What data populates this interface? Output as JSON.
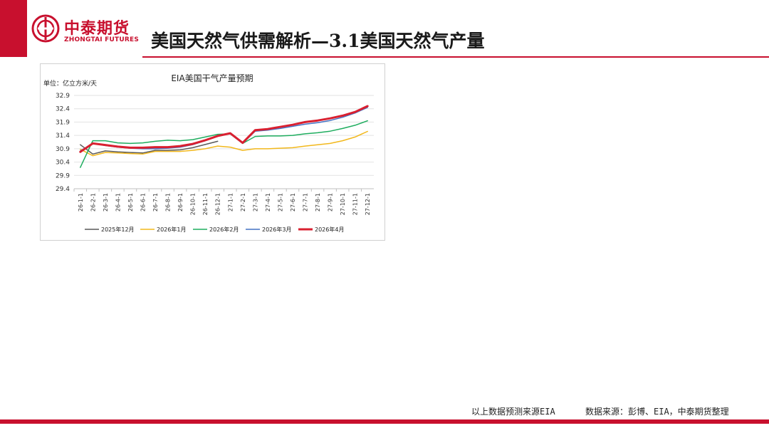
{
  "header": {
    "logo_cn": "中泰期货",
    "logo_en": "ZHONGTAI FUTURES",
    "title": "美国天然气供需解析—3.1美国天然气产量"
  },
  "colors": {
    "brand": "#c8102e"
  },
  "chart_data": {
    "type": "line",
    "title": "EIA美国干气产量预期",
    "unit_label": "单位：亿立方米/天",
    "xlabel": "",
    "ylabel": "",
    "ylim": [
      29.4,
      32.9
    ],
    "yticks": [
      "29.4",
      "29.9",
      "30.4",
      "30.9",
      "31.4",
      "31.9",
      "32.4",
      "32.9"
    ],
    "grid": true,
    "legend": "bottom",
    "categories": [
      "26-1-1",
      "26-2-1",
      "26-3-1",
      "26-4-1",
      "26-5-1",
      "26-6-1",
      "26-7-1",
      "26-8-1",
      "26-9-1",
      "26-10-1",
      "26-11-1",
      "26-12-1",
      "27-1-1",
      "27-2-1",
      "27-3-1",
      "27-4-1",
      "27-5-1",
      "27-6-1",
      "27-7-1",
      "27-8-1",
      "27-9-1",
      "27-10-1",
      "27-11-1",
      "27-12-1"
    ],
    "series": [
      {
        "name": "2025年12月",
        "color": "#595959",
        "width": 1.5,
        "values": [
          31.05,
          30.7,
          30.82,
          30.78,
          30.76,
          30.74,
          30.84,
          30.84,
          30.86,
          30.94,
          31.06,
          31.18,
          null,
          null,
          null,
          null,
          null,
          null,
          null,
          null,
          null,
          null,
          null,
          null
        ]
      },
      {
        "name": "2026年1月",
        "color": "#f2b81c",
        "width": 1.5,
        "values": [
          30.88,
          30.64,
          30.76,
          30.74,
          30.72,
          30.7,
          30.8,
          30.8,
          30.8,
          30.84,
          30.9,
          31.0,
          30.96,
          30.84,
          30.9,
          30.9,
          30.92,
          30.94,
          31.0,
          31.05,
          31.1,
          31.2,
          31.34,
          31.55
        ]
      },
      {
        "name": "2026年2月",
        "color": "#1fad5f",
        "width": 1.5,
        "values": [
          30.2,
          31.2,
          31.2,
          31.12,
          31.1,
          31.12,
          31.18,
          31.22,
          31.2,
          31.24,
          31.34,
          31.44,
          31.46,
          31.1,
          31.36,
          31.38,
          31.38,
          31.4,
          31.46,
          31.5,
          31.56,
          31.66,
          31.78,
          31.95
        ]
      },
      {
        "name": "2026年3月",
        "color": "#4472c4",
        "width": 1.5,
        "values": [
          30.82,
          31.1,
          31.02,
          30.96,
          30.92,
          30.9,
          30.9,
          30.92,
          30.96,
          31.05,
          31.2,
          31.38,
          31.46,
          31.1,
          31.56,
          31.6,
          31.66,
          31.74,
          31.82,
          31.88,
          31.96,
          32.08,
          32.24,
          32.45
        ]
      },
      {
        "name": "2026年4月",
        "color": "#d92030",
        "width": 3,
        "values": [
          30.78,
          31.1,
          31.04,
          30.98,
          30.94,
          30.94,
          30.96,
          30.96,
          31.0,
          31.08,
          31.22,
          31.38,
          31.48,
          31.12,
          31.6,
          31.64,
          31.72,
          31.8,
          31.9,
          31.96,
          32.04,
          32.14,
          32.28,
          32.5
        ]
      }
    ]
  },
  "footer": {
    "note1": "以上数据预测来源EIA",
    "note2": "数据来源：彭博、EIA，中泰期货整理"
  }
}
